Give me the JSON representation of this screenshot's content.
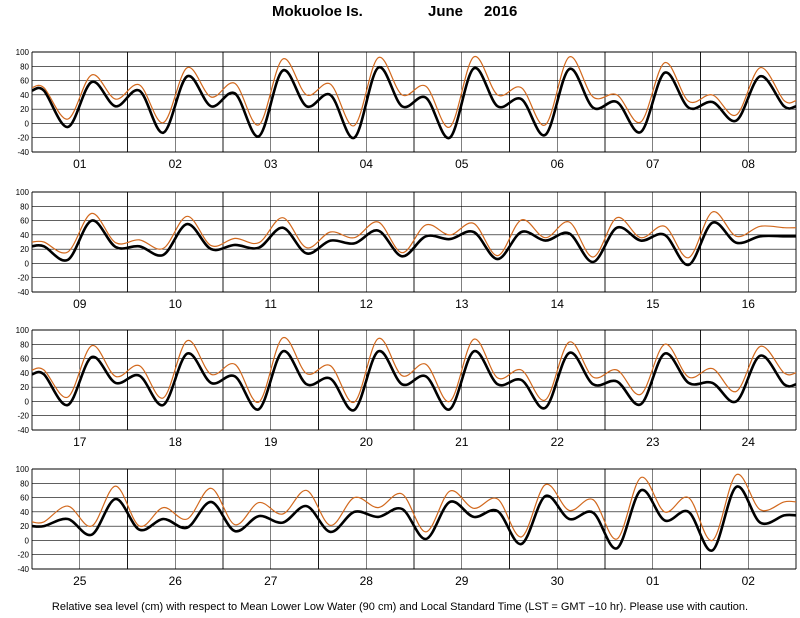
{
  "title": {
    "station": "Mokuoloe Is.",
    "month": "June",
    "year": "2016"
  },
  "footnote": "Relative sea level (cm) with respect to Mean Lower Low Water (90 cm) and Local Standard Time (LST = GMT −10 hr). Please use with caution.",
  "colors": {
    "observed": "#000000",
    "predicted": "#d2691e",
    "grid": "#000000"
  },
  "chart_data": {
    "type": "line",
    "ylim": [
      -40,
      100
    ],
    "yticks": [
      -40,
      -20,
      0,
      20,
      40,
      60,
      80,
      100
    ],
    "days_per_panel": 8,
    "panels": [
      {
        "days": [
          "01",
          "02",
          "03",
          "04",
          "05",
          "06",
          "07",
          "08"
        ],
        "series": [
          {
            "values": [
              46,
              -5,
              58,
              24,
              46,
              -13,
              66,
              24,
              42,
              -18,
              74,
              24,
              40,
              -20,
              78,
              24,
              36,
              -20,
              77,
              24,
              34,
              -16,
              76,
              22,
              30,
              -12,
              71,
              22,
              30,
              4,
              66,
              24
            ]
          },
          {
            "values": [
              50,
              6,
              68,
              34,
              54,
              1,
              78,
              37,
              56,
              -2,
              90,
              40,
              55,
              -3,
              92,
              40,
              52,
              -5,
              93,
              40,
              50,
              -2,
              93,
              37,
              40,
              2,
              85,
              31,
              40,
              12,
              78,
              32
            ]
          }
        ]
      },
      {
        "days": [
          "09",
          "10",
          "11",
          "12",
          "13",
          "14",
          "15",
          "16"
        ],
        "series": [
          {
            "values": [
              24,
              5,
              60,
              23,
              24,
              12,
              55,
              20,
              26,
              22,
              50,
              14,
              32,
              28,
              46,
              10,
              38,
              34,
              44,
              6,
              44,
              32,
              42,
              2,
              50,
              32,
              40,
              -2,
              57,
              29,
              38,
              38
            ]
          },
          {
            "values": [
              30,
              16,
              70,
              29,
              33,
              21,
              66,
              25,
              35,
              29,
              64,
              22,
              44,
              36,
              58,
              15,
              54,
              40,
              56,
              11,
              61,
              36,
              58,
              9,
              64,
              36,
              52,
              8,
              72,
              38,
              52,
              50
            ]
          }
        ]
      },
      {
        "days": [
          "17",
          "18",
          "19",
          "20",
          "21",
          "22",
          "23",
          "24"
        ],
        "series": [
          {
            "values": [
              38,
              -5,
              62,
              26,
              36,
              -5,
              67,
              26,
              35,
              -11,
              70,
              24,
              32,
              -12,
              70,
              24,
              35,
              -11,
              70,
              24,
              30,
              -9,
              68,
              24,
              28,
              -4,
              67,
              26,
              26,
              0,
              64,
              24
            ]
          },
          {
            "values": [
              44,
              6,
              78,
              35,
              50,
              5,
              85,
              38,
              52,
              -1,
              89,
              39,
              50,
              -1,
              88,
              36,
              52,
              0,
              87,
              33,
              44,
              2,
              83,
              34,
              44,
              10,
              80,
              34,
              46,
              14,
              77,
              40
            ]
          }
        ]
      },
      {
        "days": [
          "25",
          "26",
          "27",
          "28",
          "29",
          "30",
          "01",
          "02"
        ],
        "series": [
          {
            "values": [
              20,
              30,
              8,
              58,
              15,
              30,
              18,
              54,
              13,
              34,
              25,
              48,
              12,
              40,
              33,
              44,
              2,
              54,
              33,
              41,
              -5,
              62,
              30,
              39,
              -11,
              70,
              28,
              40,
              -14,
              75,
              25,
              35
            ]
          },
          {
            "values": [
              26,
              48,
              20,
              76,
              20,
              46,
              30,
              73,
              22,
              53,
              37,
              70,
              21,
              60,
              46,
              65,
              12,
              69,
              45,
              58,
              5,
              78,
              42,
              57,
              2,
              88,
              40,
              60,
              0,
              92,
              43,
              54
            ]
          }
        ]
      }
    ]
  }
}
